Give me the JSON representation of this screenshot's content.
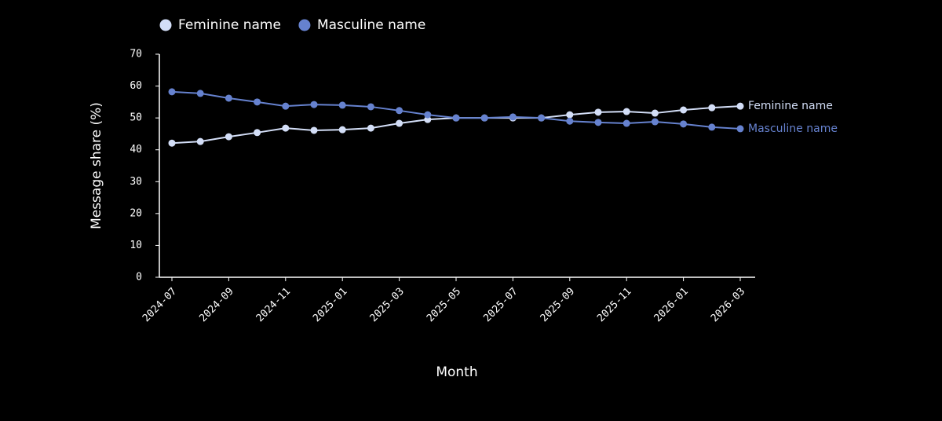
{
  "chart_data": {
    "type": "line",
    "x_label": "Month",
    "y_label": "Message share (%)",
    "categories": [
      "2024-07",
      null,
      "2024-09",
      null,
      "2024-11",
      null,
      "2025-01",
      null,
      "2025-03",
      null,
      "2025-05",
      null,
      "2025-07",
      null,
      "2025-09",
      null,
      "2025-11",
      null,
      "2026-01",
      null,
      "2026-03"
    ],
    "series": [
      {
        "name": "Feminine name",
        "color": "#d3def7",
        "values": [
          42.1,
          42.6,
          44.1,
          45.4,
          46.8,
          46.1,
          46.3,
          46.8,
          48.3,
          49.5,
          50.0,
          50.0,
          50.0,
          50.0,
          51.0,
          51.8,
          52.0,
          51.5,
          52.5,
          53.2,
          53.7
        ]
      },
      {
        "name": "Masculine name",
        "color": "#6682cf",
        "values": [
          58.2,
          57.7,
          56.2,
          55.0,
          53.7,
          54.2,
          54.0,
          53.5,
          52.3,
          51.0,
          50.0,
          50.0,
          50.3,
          50.0,
          49.0,
          48.6,
          48.3,
          48.8,
          48.1,
          47.1,
          46.6
        ]
      }
    ],
    "ylim": [
      0,
      70
    ],
    "yticks": [
      0,
      10,
      20,
      30,
      40,
      50,
      60,
      70
    ],
    "legend": "top-left"
  }
}
